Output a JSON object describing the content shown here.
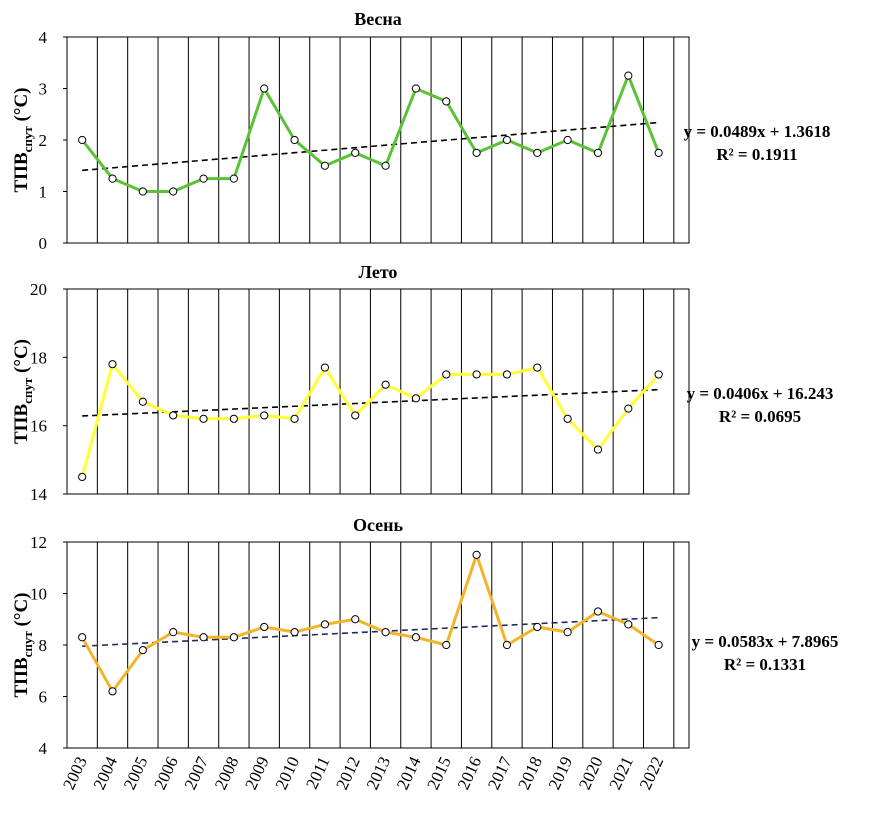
{
  "chart_data": [
    {
      "type": "line",
      "title": "Весна",
      "ylabel": "ТПВ",
      "ylabel_sub": "спут",
      "ylabel_unit": " (°C)",
      "categories": [
        "2003",
        "2004",
        "2005",
        "2006",
        "2007",
        "2008",
        "2009",
        "2010",
        "2011",
        "2012",
        "2013",
        "2014",
        "2015",
        "2016",
        "2017",
        "2018",
        "2019",
        "2020",
        "2021",
        "2022"
      ],
      "values": [
        2.0,
        1.25,
        1.0,
        1.0,
        1.25,
        1.25,
        3.0,
        2.0,
        1.5,
        1.75,
        1.5,
        3.0,
        2.75,
        1.75,
        2.0,
        1.75,
        2.0,
        1.75,
        3.25,
        1.75
      ],
      "ylim": [
        0,
        4
      ],
      "yticks": [
        0,
        1,
        2,
        3,
        4
      ],
      "trend": {
        "slope": 0.0489,
        "intercept": 1.3618
      },
      "equation": "y = 0.0489x + 1.3618",
      "r2": "R² = 0.1911",
      "line_color": "#5bc236",
      "trend_color": "#000000"
    },
    {
      "type": "line",
      "title": "Лето",
      "ylabel": "ТПВ",
      "ylabel_sub": "спут",
      "ylabel_unit": " (°C)",
      "categories": [
        "2003",
        "2004",
        "2005",
        "2006",
        "2007",
        "2008",
        "2009",
        "2010",
        "2011",
        "2012",
        "2013",
        "2014",
        "2015",
        "2016",
        "2017",
        "2018",
        "2019",
        "2020",
        "2021",
        "2022"
      ],
      "values": [
        14.5,
        17.8,
        16.7,
        16.3,
        16.2,
        16.2,
        16.3,
        16.2,
        17.7,
        16.3,
        17.2,
        16.8,
        17.5,
        17.5,
        17.5,
        17.7,
        16.2,
        15.3,
        16.5,
        17.5
      ],
      "ylim": [
        14,
        20
      ],
      "yticks": [
        14,
        16,
        18,
        20
      ],
      "trend": {
        "slope": 0.0406,
        "intercept": 16.243
      },
      "equation": "y = 0.0406x + 16.243",
      "r2": "R² = 0.0695",
      "line_color": "#ffff33",
      "trend_color": "#000000"
    },
    {
      "type": "line",
      "title": "Осень",
      "ylabel": "ТПВ",
      "ylabel_sub": "спут",
      "ylabel_unit": " (°C)",
      "categories": [
        "2003",
        "2004",
        "2005",
        "2006",
        "2007",
        "2008",
        "2009",
        "2010",
        "2011",
        "2012",
        "2013",
        "2014",
        "2015",
        "2016",
        "2017",
        "2018",
        "2019",
        "2020",
        "2021",
        "2022"
      ],
      "values": [
        8.3,
        6.2,
        7.8,
        8.5,
        8.3,
        8.3,
        8.7,
        8.5,
        8.8,
        9.0,
        8.5,
        8.3,
        8.0,
        11.5,
        8.0,
        8.7,
        8.5,
        9.3,
        8.8,
        8.0
      ],
      "ylim": [
        4,
        12
      ],
      "yticks": [
        4,
        6,
        8,
        10,
        12
      ],
      "trend": {
        "slope": 0.0583,
        "intercept": 7.8965
      },
      "equation": "y = 0.0583x + 7.8965",
      "r2": "R² = 0.1331",
      "line_color": "#f2b52a",
      "trend_color": "#1f2d5a"
    }
  ]
}
